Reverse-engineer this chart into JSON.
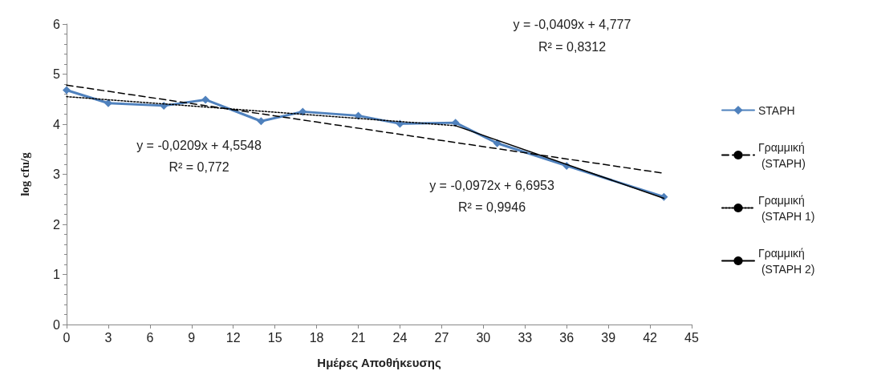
{
  "chart_data": {
    "type": "line",
    "xlabel": "Ημέρες Αποθήκευσης",
    "ylabel": "log cfu/g",
    "xlim": [
      0,
      45
    ],
    "xticks": [
      0,
      3,
      6,
      9,
      12,
      15,
      18,
      21,
      24,
      27,
      30,
      33,
      36,
      39,
      42,
      45
    ],
    "ylim": [
      0,
      6
    ],
    "yticks": [
      0,
      1,
      2,
      3,
      4,
      5,
      6
    ],
    "grid": false,
    "legend": "right",
    "series": [
      {
        "name": "STAPH",
        "color": "#4f81bd",
        "marker": "diamond",
        "line_style": "solid",
        "x": [
          0,
          3,
          7,
          10,
          14,
          17,
          21,
          24,
          28,
          31,
          36,
          43
        ],
        "values": [
          4.68,
          4.42,
          4.37,
          4.49,
          4.06,
          4.25,
          4.17,
          4.01,
          4.03,
          3.62,
          3.17,
          2.55
        ]
      },
      {
        "name": "Γραμμική (STAPH)",
        "color": "#000000",
        "marker": "none",
        "line_style": "dashed",
        "x": [
          0,
          43
        ],
        "values": [
          4.78,
          3.02
        ]
      },
      {
        "name": "Γραμμική (STAPH 1)",
        "color": "#000000",
        "marker": "none",
        "line_style": "dotted",
        "x": [
          0,
          28
        ],
        "values": [
          4.55,
          3.97
        ]
      },
      {
        "name": "Γραμμική (STAPH 2)",
        "color": "#000000",
        "marker": "none",
        "line_style": "solid",
        "x": [
          28,
          43
        ],
        "values": [
          3.97,
          2.52
        ]
      }
    ],
    "annotations": [
      "y = -0,0409x + 4,777",
      "R² = 0,8312",
      "y = -0,0209x + 4,5548",
      "R² = 0,772",
      "y = -0,0972x + 6,6953",
      "R² = 0,9946"
    ]
  }
}
